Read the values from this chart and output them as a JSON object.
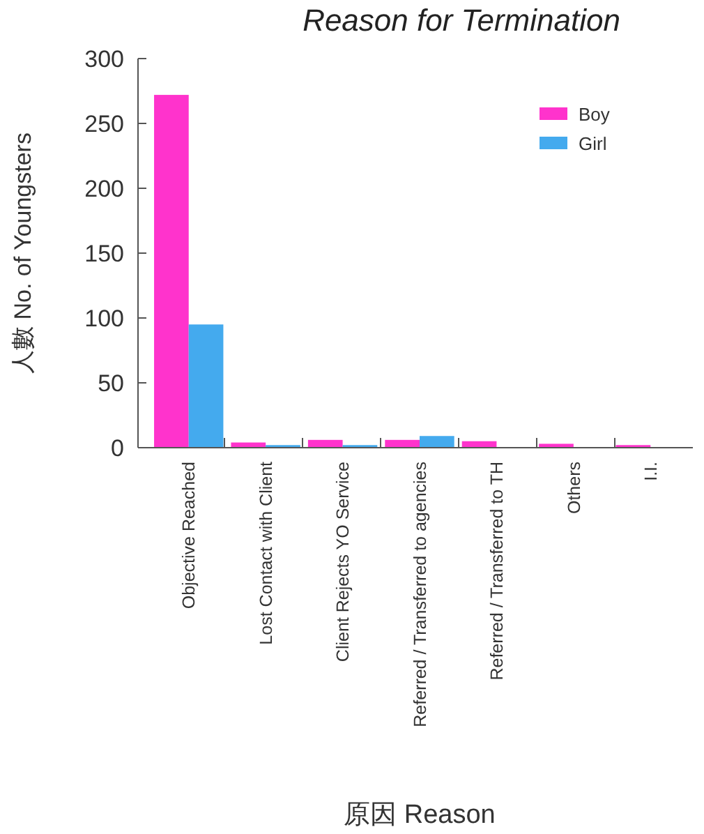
{
  "chart_data": {
    "type": "bar",
    "title": "Reason for Termination",
    "xlabel": "原因 Reason",
    "ylabel": "人數 No. of Youngsters",
    "categories": [
      "Objective Reached",
      "Lost Contact with Client",
      "Client Rejects YO Service",
      "Referred / Transferred to agencies",
      "Referred / Transferred to TH",
      "Others",
      "I.I."
    ],
    "series": [
      {
        "name": "Boy",
        "color": "#ff33cc",
        "values": [
          272,
          4,
          6,
          6,
          5,
          3,
          2
        ]
      },
      {
        "name": "Girl",
        "color": "#44aaee",
        "values": [
          95,
          2,
          2,
          9,
          null,
          null,
          null
        ]
      }
    ],
    "ylim": [
      0,
      300
    ],
    "yticks": [
      0,
      50,
      100,
      150,
      200,
      250,
      300
    ],
    "legend": "top right"
  }
}
